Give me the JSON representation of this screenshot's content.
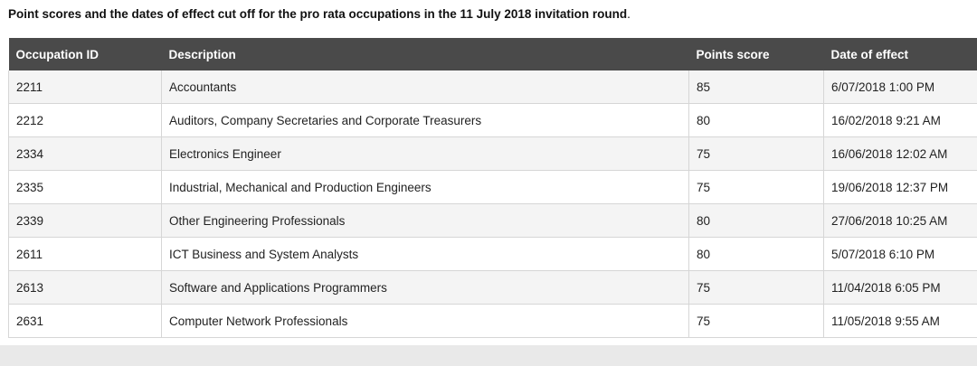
{
  "caption": {
    "text": "Point scores and the dates of effect cut off for the pro rata occupations in the 11 July 2018 invitation round",
    "period": "."
  },
  "table": {
    "headers": [
      "Occupation ID",
      "Description",
      "Points score",
      "Date of effect"
    ],
    "rows": [
      [
        "2211",
        "Accountants",
        "85",
        "6/07/2018 1:00 PM"
      ],
      [
        "2212",
        "Auditors, Company Secretaries and Corporate Treasurers",
        "80",
        "16/02/2018 9:21 AM"
      ],
      [
        "2334",
        "Electronics Engineer",
        "75",
        "16/06/2018 12:02 AM"
      ],
      [
        "2335",
        "Industrial, Mechanical and Production Engineers",
        "75",
        "19/06/2018 12:37 PM"
      ],
      [
        "2339",
        "Other Engineering Professionals",
        "80",
        "27/06/2018 10:25 AM"
      ],
      [
        "2611",
        "ICT Business and System Analysts",
        "80",
        "5/07/2018 6:10 PM"
      ],
      [
        "2613",
        "Software and Applications Programmers",
        "75",
        "11/04/2018 6:05 PM"
      ],
      [
        "2631",
        "Computer Network Professionals",
        "75",
        "11/05/2018 9:55 AM"
      ]
    ]
  },
  "colors": {
    "header_bg": "#4a4a4a",
    "header_text": "#ffffff",
    "row_alt_bg": "#f4f4f4",
    "border": "#d6d6d6"
  }
}
